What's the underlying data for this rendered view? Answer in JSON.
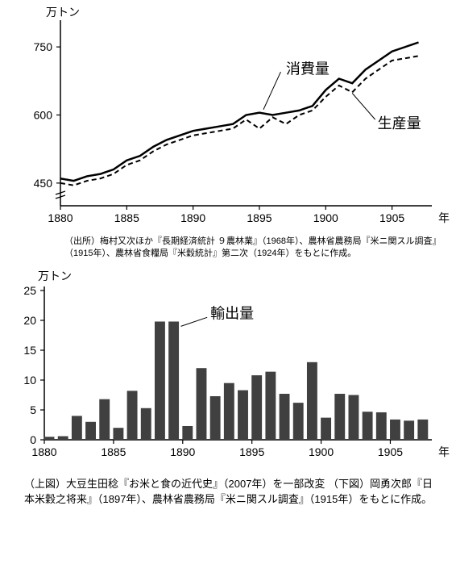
{
  "top_chart": {
    "type": "line",
    "y_unit_label": "万トン",
    "x_unit_label": "年",
    "series1_label": "消費量",
    "series2_label": "生産量",
    "ylim": [
      400,
      800
    ],
    "yticks": [
      450,
      600,
      750
    ],
    "xlim": [
      1880,
      1908
    ],
    "xticks": [
      1880,
      1885,
      1890,
      1895,
      1900,
      1905
    ],
    "background_color": "#ffffff",
    "axis_color": "#000000",
    "label_fontsize": 14,
    "tick_fontsize": 14,
    "series1": {
      "color": "#000000",
      "line_width": 2.5,
      "dash": "none",
      "years": [
        1880,
        1881,
        1882,
        1883,
        1884,
        1885,
        1886,
        1887,
        1888,
        1889,
        1890,
        1891,
        1892,
        1893,
        1894,
        1895,
        1896,
        1897,
        1898,
        1899,
        1900,
        1901,
        1902,
        1903,
        1904,
        1905,
        1906,
        1907
      ],
      "values": [
        460,
        455,
        465,
        470,
        480,
        500,
        510,
        530,
        545,
        555,
        565,
        570,
        575,
        580,
        600,
        605,
        600,
        605,
        610,
        620,
        655,
        680,
        670,
        700,
        720,
        740,
        750,
        760
      ]
    },
    "series2": {
      "color": "#000000",
      "line_width": 2,
      "dash": "6,4",
      "years": [
        1880,
        1881,
        1882,
        1883,
        1884,
        1885,
        1886,
        1887,
        1888,
        1889,
        1890,
        1891,
        1892,
        1893,
        1894,
        1895,
        1896,
        1897,
        1898,
        1899,
        1900,
        1901,
        1902,
        1903,
        1904,
        1905,
        1906,
        1907
      ],
      "values": [
        450,
        445,
        455,
        460,
        470,
        490,
        500,
        520,
        535,
        545,
        555,
        560,
        565,
        570,
        590,
        570,
        595,
        580,
        600,
        610,
        640,
        665,
        650,
        680,
        700,
        720,
        725,
        730
      ]
    }
  },
  "top_caption": "（出所）梅村又次ほか『長期経済統計 ９農林業』（1968年）、農林省農務局『米ニ関スル調査』（1915年）、農林省食糧局『米穀統計』第二次（1924年）をもとに作成。",
  "bottom_chart": {
    "type": "bar",
    "y_unit_label": "万トン",
    "x_unit_label": "年",
    "series_label": "輸出量",
    "ylim": [
      0,
      25
    ],
    "yticks": [
      0,
      5,
      10,
      15,
      20,
      25
    ],
    "xlim": [
      1880,
      1908
    ],
    "xticks": [
      1880,
      1885,
      1890,
      1895,
      1900,
      1905
    ],
    "bar_color": "#404040",
    "background_color": "#ffffff",
    "axis_color": "#000000",
    "label_fontsize": 14,
    "tick_fontsize": 14,
    "bar_width": 0.75,
    "years": [
      1880,
      1881,
      1882,
      1883,
      1884,
      1885,
      1886,
      1887,
      1888,
      1889,
      1890,
      1891,
      1892,
      1893,
      1894,
      1895,
      1896,
      1897,
      1898,
      1899,
      1900,
      1901,
      1902,
      1903,
      1904,
      1905,
      1906,
      1907
    ],
    "values": [
      0.5,
      0.6,
      4.0,
      3.0,
      6.8,
      2.0,
      8.2,
      5.3,
      19.8,
      19.8,
      2.3,
      12.0,
      7.3,
      9.5,
      8.3,
      10.8,
      11.4,
      7.7,
      6.2,
      13.0,
      3.7,
      7.7,
      7.5,
      4.7,
      4.6,
      3.4,
      3.2,
      3.4
    ]
  },
  "bottom_caption": "（上図）大豆生田稔『お米と食の近代史』（2007年）を一部改変\n（下図）岡勇次郎『日本米穀之将来』（1897年）、農林省農務局『米ニ関スル調査』（1915年）をもとに作成。"
}
